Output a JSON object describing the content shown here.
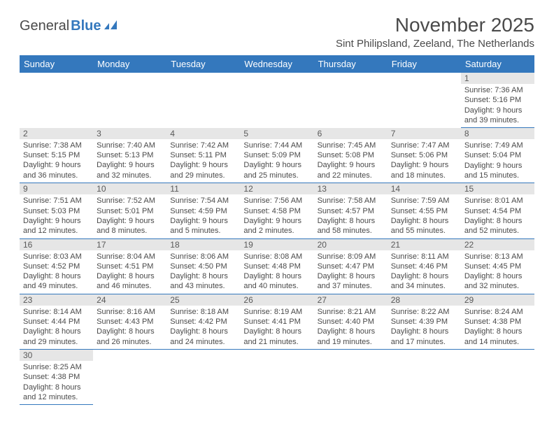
{
  "logo": {
    "text1": "General",
    "text2": "Blue",
    "text1_color": "#4a4a4a",
    "text2_color": "#3478bd",
    "icon_color": "#3478bd"
  },
  "header": {
    "title": "November 2025",
    "location": "Sint Philipsland, Zeeland, The Netherlands"
  },
  "style": {
    "header_bg": "#3478bd",
    "header_text": "#ffffff",
    "daynum_bg": "#e6e6e6",
    "daynum_text": "#595959",
    "body_text": "#4a4a4a",
    "row_border": "#3478bd"
  },
  "weekdays": [
    "Sunday",
    "Monday",
    "Tuesday",
    "Wednesday",
    "Thursday",
    "Friday",
    "Saturday"
  ],
  "weeks": [
    [
      null,
      null,
      null,
      null,
      null,
      null,
      {
        "n": "1",
        "sr": "7:36 AM",
        "ss": "5:16 PM",
        "dl": "9 hours and 39 minutes."
      }
    ],
    [
      {
        "n": "2",
        "sr": "7:38 AM",
        "ss": "5:15 PM",
        "dl": "9 hours and 36 minutes."
      },
      {
        "n": "3",
        "sr": "7:40 AM",
        "ss": "5:13 PM",
        "dl": "9 hours and 32 minutes."
      },
      {
        "n": "4",
        "sr": "7:42 AM",
        "ss": "5:11 PM",
        "dl": "9 hours and 29 minutes."
      },
      {
        "n": "5",
        "sr": "7:44 AM",
        "ss": "5:09 PM",
        "dl": "9 hours and 25 minutes."
      },
      {
        "n": "6",
        "sr": "7:45 AM",
        "ss": "5:08 PM",
        "dl": "9 hours and 22 minutes."
      },
      {
        "n": "7",
        "sr": "7:47 AM",
        "ss": "5:06 PM",
        "dl": "9 hours and 18 minutes."
      },
      {
        "n": "8",
        "sr": "7:49 AM",
        "ss": "5:04 PM",
        "dl": "9 hours and 15 minutes."
      }
    ],
    [
      {
        "n": "9",
        "sr": "7:51 AM",
        "ss": "5:03 PM",
        "dl": "9 hours and 12 minutes."
      },
      {
        "n": "10",
        "sr": "7:52 AM",
        "ss": "5:01 PM",
        "dl": "9 hours and 8 minutes."
      },
      {
        "n": "11",
        "sr": "7:54 AM",
        "ss": "4:59 PM",
        "dl": "9 hours and 5 minutes."
      },
      {
        "n": "12",
        "sr": "7:56 AM",
        "ss": "4:58 PM",
        "dl": "9 hours and 2 minutes."
      },
      {
        "n": "13",
        "sr": "7:58 AM",
        "ss": "4:57 PM",
        "dl": "8 hours and 58 minutes."
      },
      {
        "n": "14",
        "sr": "7:59 AM",
        "ss": "4:55 PM",
        "dl": "8 hours and 55 minutes."
      },
      {
        "n": "15",
        "sr": "8:01 AM",
        "ss": "4:54 PM",
        "dl": "8 hours and 52 minutes."
      }
    ],
    [
      {
        "n": "16",
        "sr": "8:03 AM",
        "ss": "4:52 PM",
        "dl": "8 hours and 49 minutes."
      },
      {
        "n": "17",
        "sr": "8:04 AM",
        "ss": "4:51 PM",
        "dl": "8 hours and 46 minutes."
      },
      {
        "n": "18",
        "sr": "8:06 AM",
        "ss": "4:50 PM",
        "dl": "8 hours and 43 minutes."
      },
      {
        "n": "19",
        "sr": "8:08 AM",
        "ss": "4:48 PM",
        "dl": "8 hours and 40 minutes."
      },
      {
        "n": "20",
        "sr": "8:09 AM",
        "ss": "4:47 PM",
        "dl": "8 hours and 37 minutes."
      },
      {
        "n": "21",
        "sr": "8:11 AM",
        "ss": "4:46 PM",
        "dl": "8 hours and 34 minutes."
      },
      {
        "n": "22",
        "sr": "8:13 AM",
        "ss": "4:45 PM",
        "dl": "8 hours and 32 minutes."
      }
    ],
    [
      {
        "n": "23",
        "sr": "8:14 AM",
        "ss": "4:44 PM",
        "dl": "8 hours and 29 minutes."
      },
      {
        "n": "24",
        "sr": "8:16 AM",
        "ss": "4:43 PM",
        "dl": "8 hours and 26 minutes."
      },
      {
        "n": "25",
        "sr": "8:18 AM",
        "ss": "4:42 PM",
        "dl": "8 hours and 24 minutes."
      },
      {
        "n": "26",
        "sr": "8:19 AM",
        "ss": "4:41 PM",
        "dl": "8 hours and 21 minutes."
      },
      {
        "n": "27",
        "sr": "8:21 AM",
        "ss": "4:40 PM",
        "dl": "8 hours and 19 minutes."
      },
      {
        "n": "28",
        "sr": "8:22 AM",
        "ss": "4:39 PM",
        "dl": "8 hours and 17 minutes."
      },
      {
        "n": "29",
        "sr": "8:24 AM",
        "ss": "4:38 PM",
        "dl": "8 hours and 14 minutes."
      }
    ],
    [
      {
        "n": "30",
        "sr": "8:25 AM",
        "ss": "4:38 PM",
        "dl": "8 hours and 12 minutes."
      },
      null,
      null,
      null,
      null,
      null,
      null
    ]
  ],
  "labels": {
    "sunrise": "Sunrise:",
    "sunset": "Sunset:",
    "daylight": "Daylight:"
  }
}
